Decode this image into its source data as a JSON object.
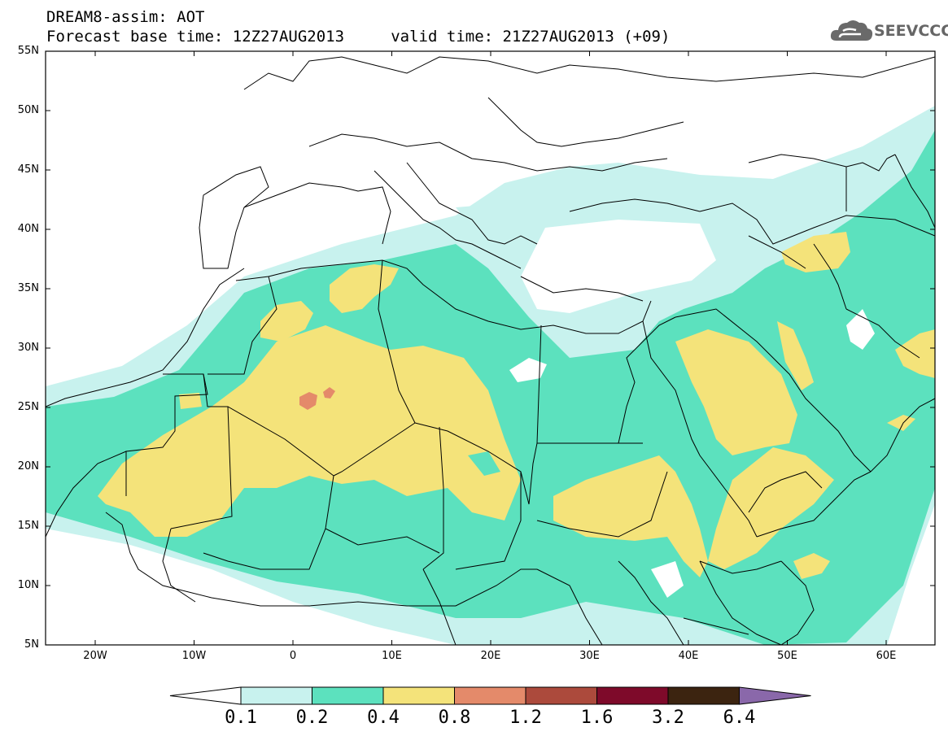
{
  "header": {
    "line1": "DREAM8-assim: AOT",
    "line2": "Forecast base time: 12Z27AUG2013     valid time: 21Z27AUG2013 (+09)"
  },
  "logo": {
    "text": "SEEVCCC",
    "icon": "cloud-icon"
  },
  "axes": {
    "lat_labels": [
      "55N",
      "50N",
      "45N",
      "40N",
      "35N",
      "30N",
      "25N",
      "20N",
      "15N",
      "10N",
      "5N"
    ],
    "lon_labels": [
      "20W",
      "10W",
      "0",
      "10E",
      "20E",
      "30E",
      "40E",
      "50E",
      "60E"
    ]
  },
  "colorbar": {
    "labels": [
      "0.1",
      "0.2",
      "0.4",
      "0.8",
      "1.2",
      "1.6",
      "3.2",
      "6.4"
    ],
    "colors": [
      "#c8f2ee",
      "#5ce1be",
      "#f4e37a",
      "#e48a6a",
      "#ac4a3c",
      "#7e0a2a",
      "#3c2410",
      "#8a68aa"
    ]
  },
  "colors": {
    "land": "#ffffff",
    "sea": "#ffffff",
    "border": "#000000"
  }
}
